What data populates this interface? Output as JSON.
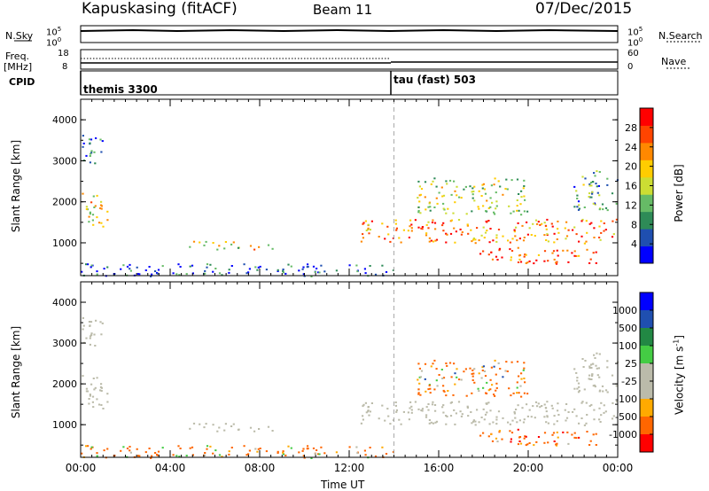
{
  "header": {
    "station": "Kapuskasing (fitACF)",
    "beam": "Beam 11",
    "date": "07/Dec/2015"
  },
  "strip_labels": {
    "nsky": "N.Sky",
    "nsky_tick_hi": "10^5",
    "nsky_tick_lo": "10^0",
    "nsearch": "N.Search",
    "nsearch_tick_hi": "10^5",
    "nsearch_tick_lo": "10^0",
    "freq": "Freq.",
    "freq_unit": "[MHz]",
    "freq_tick_hi": "18",
    "freq_tick_lo": "8",
    "nave": "Nave",
    "nave_tick_hi": "60",
    "nave_tick_lo": "0",
    "cpid": "CPID",
    "cpid_mode1": "themis 3300",
    "cpid_mode2": "tau (fast) 503"
  },
  "colors": {
    "power": [
      "#0000ff",
      "#1f4fb0",
      "#2e8b57",
      "#66bb66",
      "#ccdd33",
      "#ffcc00",
      "#ff8800",
      "#ff4400",
      "#ff0000"
    ],
    "velocity": [
      "#ff0000",
      "#ff6600",
      "#ffaa00",
      "#bbbbaa",
      "#bbbbaa",
      "#44cc44",
      "#228844",
      "#1f4fb0",
      "#0000ff"
    ],
    "ground_scatter": "#bbbbaa"
  },
  "chart_data": [
    {
      "type": "heatmap",
      "title": "",
      "xlabel": "",
      "ylabel": "Slant Range [km]",
      "xlim": [
        "00:00",
        "24:00"
      ],
      "ylim": [
        200,
        4500
      ],
      "x_ticks": [
        "00:00",
        "04:00",
        "08:00",
        "12:00",
        "16:00",
        "20:00",
        "00:00"
      ],
      "y_ticks": [
        1000,
        2000,
        3000,
        4000
      ],
      "colorbar": {
        "label": "Power [dB]",
        "range": [
          0,
          32
        ],
        "ticks": [
          4,
          8,
          12,
          16,
          20,
          24,
          28
        ]
      },
      "regions": [
        {
          "t": [
            0.0,
            1.2
          ],
          "r": [
            1400,
            2300
          ],
          "value": 18
        },
        {
          "t": [
            0.0,
            1.0
          ],
          "r": [
            2900,
            3700
          ],
          "value": 6
        },
        {
          "t": [
            0.0,
            14.0
          ],
          "r": [
            200,
            500
          ],
          "value": 6
        },
        {
          "t": [
            4.8,
            8.6
          ],
          "r": [
            850,
            1050
          ],
          "value": 18
        },
        {
          "t": [
            12.5,
            24.0
          ],
          "r": [
            1000,
            1600
          ],
          "value": 24
        },
        {
          "t": [
            17.5,
            23.0
          ],
          "r": [
            500,
            900
          ],
          "value": 28
        },
        {
          "t": [
            22.0,
            24.0
          ],
          "r": [
            1800,
            2800
          ],
          "value": 10
        },
        {
          "t": [
            15.0,
            20.0
          ],
          "r": [
            1700,
            2600
          ],
          "value": 16
        }
      ],
      "cpid_change": "14:00"
    },
    {
      "type": "heatmap",
      "title": "",
      "xlabel": "Time UT",
      "ylabel": "Slant Range [km]",
      "xlim": [
        "00:00",
        "24:00"
      ],
      "ylim": [
        200,
        4500
      ],
      "x_ticks": [
        "00:00",
        "04:00",
        "08:00",
        "12:00",
        "16:00",
        "20:00",
        "00:00"
      ],
      "y_ticks": [
        1000,
        2000,
        3000,
        4000
      ],
      "colorbar": {
        "label": "Velocity [m s^-1]",
        "ticks": [
          1000,
          500,
          100,
          25,
          -25,
          -100,
          -500,
          -1000
        ]
      },
      "regions": [
        {
          "t": [
            0.0,
            1.2
          ],
          "r": [
            1400,
            2300
          ],
          "value": 0
        },
        {
          "t": [
            0.0,
            1.0
          ],
          "r": [
            2900,
            3700
          ],
          "value": 0
        },
        {
          "t": [
            0.0,
            14.0
          ],
          "r": [
            200,
            500
          ],
          "value": -200
        },
        {
          "t": [
            4.8,
            8.6
          ],
          "r": [
            850,
            1050
          ],
          "value": 0
        },
        {
          "t": [
            12.5,
            24.0
          ],
          "r": [
            1000,
            1600
          ],
          "value": 0
        },
        {
          "t": [
            17.5,
            23.0
          ],
          "r": [
            500,
            900
          ],
          "value": -300
        },
        {
          "t": [
            22.0,
            24.0
          ],
          "r": [
            1800,
            2800
          ],
          "value": 0
        },
        {
          "t": [
            15.0,
            20.0
          ],
          "r": [
            1700,
            2600
          ],
          "value": -150
        }
      ],
      "cpid_change": "14:00"
    }
  ]
}
